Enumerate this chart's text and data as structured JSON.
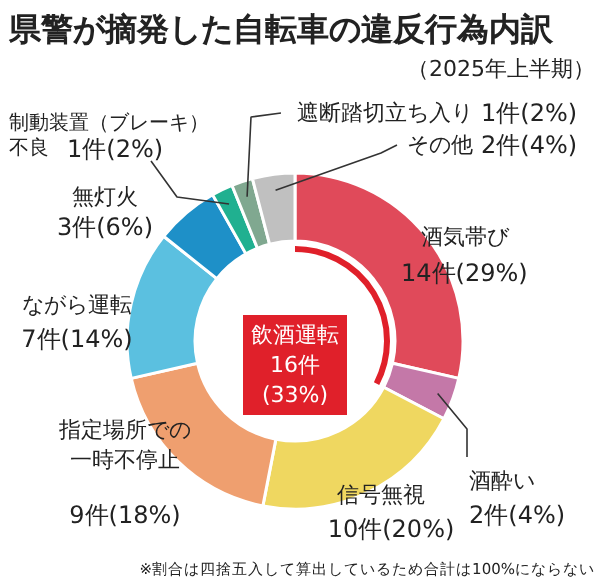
{
  "chart_data": {
    "type": "donut",
    "title": "県警が摘発した自転車の違反行為内訳",
    "subtitle": "（2025年上半期）",
    "categories": [
      "酒気帯び",
      "酒酔い",
      "信号無視",
      "指定場所での一時不停止",
      "ながら運転",
      "無灯火",
      "制動装置（ブレーキ）不良",
      "遮断踏切立ち入り",
      "その他"
    ],
    "values": [
      14,
      2,
      10,
      9,
      7,
      3,
      1,
      1,
      2
    ],
    "value_labels": [
      "14件(29%)",
      "2件(4%)",
      "10件(20%)",
      "9件(18%)",
      "7件(14%)",
      "3件(6%)",
      "1件(2%)",
      "1件(2%)",
      "2件(4%)"
    ],
    "colors": [
      "#e04a5a",
      "#c478a8",
      "#efd760",
      "#ef9f6f",
      "#5bc0e0",
      "#1e90c8",
      "#20b090",
      "#80a890",
      "#c0c0c0"
    ],
    "annotations": [
      "飲酒運転\n16件\n(33%)",
      "※割合は四捨五入して算出しているため合計は100%にならない"
    ]
  }
}
